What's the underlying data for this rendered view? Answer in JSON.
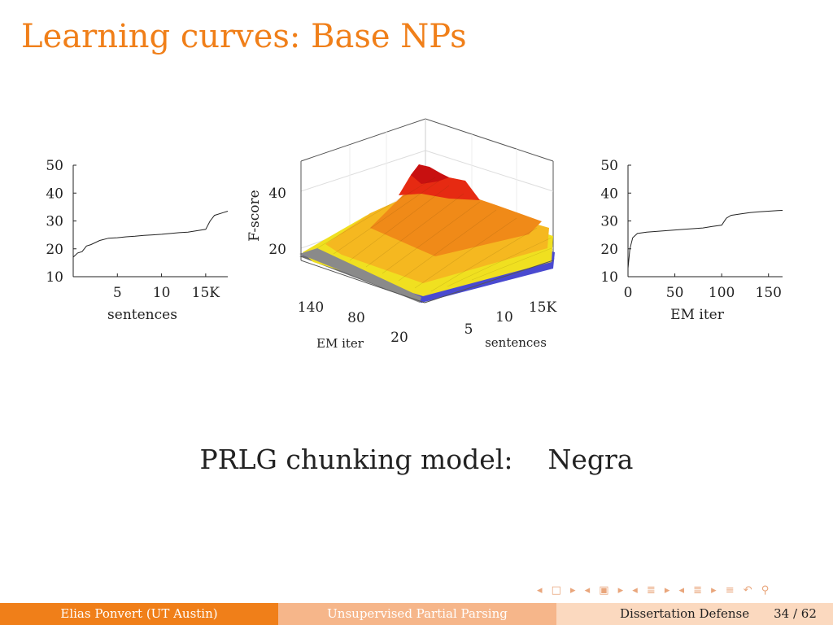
{
  "slide": {
    "title": "Learning curves: Base NPs",
    "caption_model": "PRLG chunking model:",
    "caption_corpus": "Negra",
    "footer": {
      "author": "Elias Ponvert  (UT Austin)",
      "talk": "Unsupervised Partial Parsing",
      "event": "Dissertation Defense",
      "page": "34 / 62"
    },
    "nav_icons": [
      "frame-prev-icon",
      "frame-next-icon",
      "subsection-prev-icon",
      "subsection-next-icon",
      "section-prev-icon",
      "section-next-icon",
      "align-icon",
      "undo-icon",
      "search-icon"
    ]
  },
  "chart_data": [
    {
      "type": "line",
      "id": "left",
      "xlabel": "sentences",
      "xticks": [
        "5",
        "10",
        "15K"
      ],
      "xtick_values": [
        5,
        10,
        15
      ],
      "yticks": [
        "10",
        "20",
        "30",
        "40",
        "50"
      ],
      "ylim": [
        10,
        50
      ],
      "xlim": [
        0,
        17.5
      ],
      "series": [
        {
          "x": [
            0,
            0.5,
            1,
            1.5,
            2,
            3,
            4,
            5,
            6,
            7,
            8,
            9,
            10,
            11,
            12,
            13,
            14,
            15,
            15.5,
            16,
            17,
            17.5
          ],
          "values": [
            17,
            18.5,
            19,
            21,
            21.5,
            23,
            23.8,
            24,
            24.3,
            24.5,
            24.8,
            25,
            25.2,
            25.5,
            25.8,
            26,
            26.5,
            27,
            30,
            32,
            33,
            33.5
          ]
        }
      ]
    },
    {
      "type": "surface",
      "id": "center",
      "zlabel": "F-score",
      "zticks": [
        "20",
        "40"
      ],
      "em_label": "EM iter",
      "em_ticks": [
        "140",
        "80",
        "20"
      ],
      "sent_label": "sentences",
      "sent_ticks": [
        "5",
        "10",
        "15K"
      ],
      "colors": [
        "#4040c8",
        "#f5e61e",
        "#f5a01e",
        "#e61e1e",
        "#808080"
      ],
      "peak_fscore": 48
    },
    {
      "type": "line",
      "id": "right",
      "xlabel": "EM iter",
      "xticks": [
        "0",
        "50",
        "100",
        "150"
      ],
      "xtick_values": [
        0,
        50,
        100,
        150
      ],
      "yticks": [
        "10",
        "20",
        "30",
        "40",
        "50"
      ],
      "ylim": [
        10,
        50
      ],
      "xlim": [
        0,
        165
      ],
      "series": [
        {
          "x": [
            0,
            2,
            5,
            10,
            20,
            40,
            60,
            80,
            90,
            100,
            105,
            110,
            120,
            130,
            140,
            150,
            160,
            165
          ],
          "values": [
            13,
            20,
            24,
            25.5,
            26,
            26.5,
            27,
            27.5,
            28,
            28.5,
            31,
            32,
            32.5,
            33,
            33.3,
            33.5,
            33.7,
            33.8
          ]
        }
      ]
    }
  ]
}
